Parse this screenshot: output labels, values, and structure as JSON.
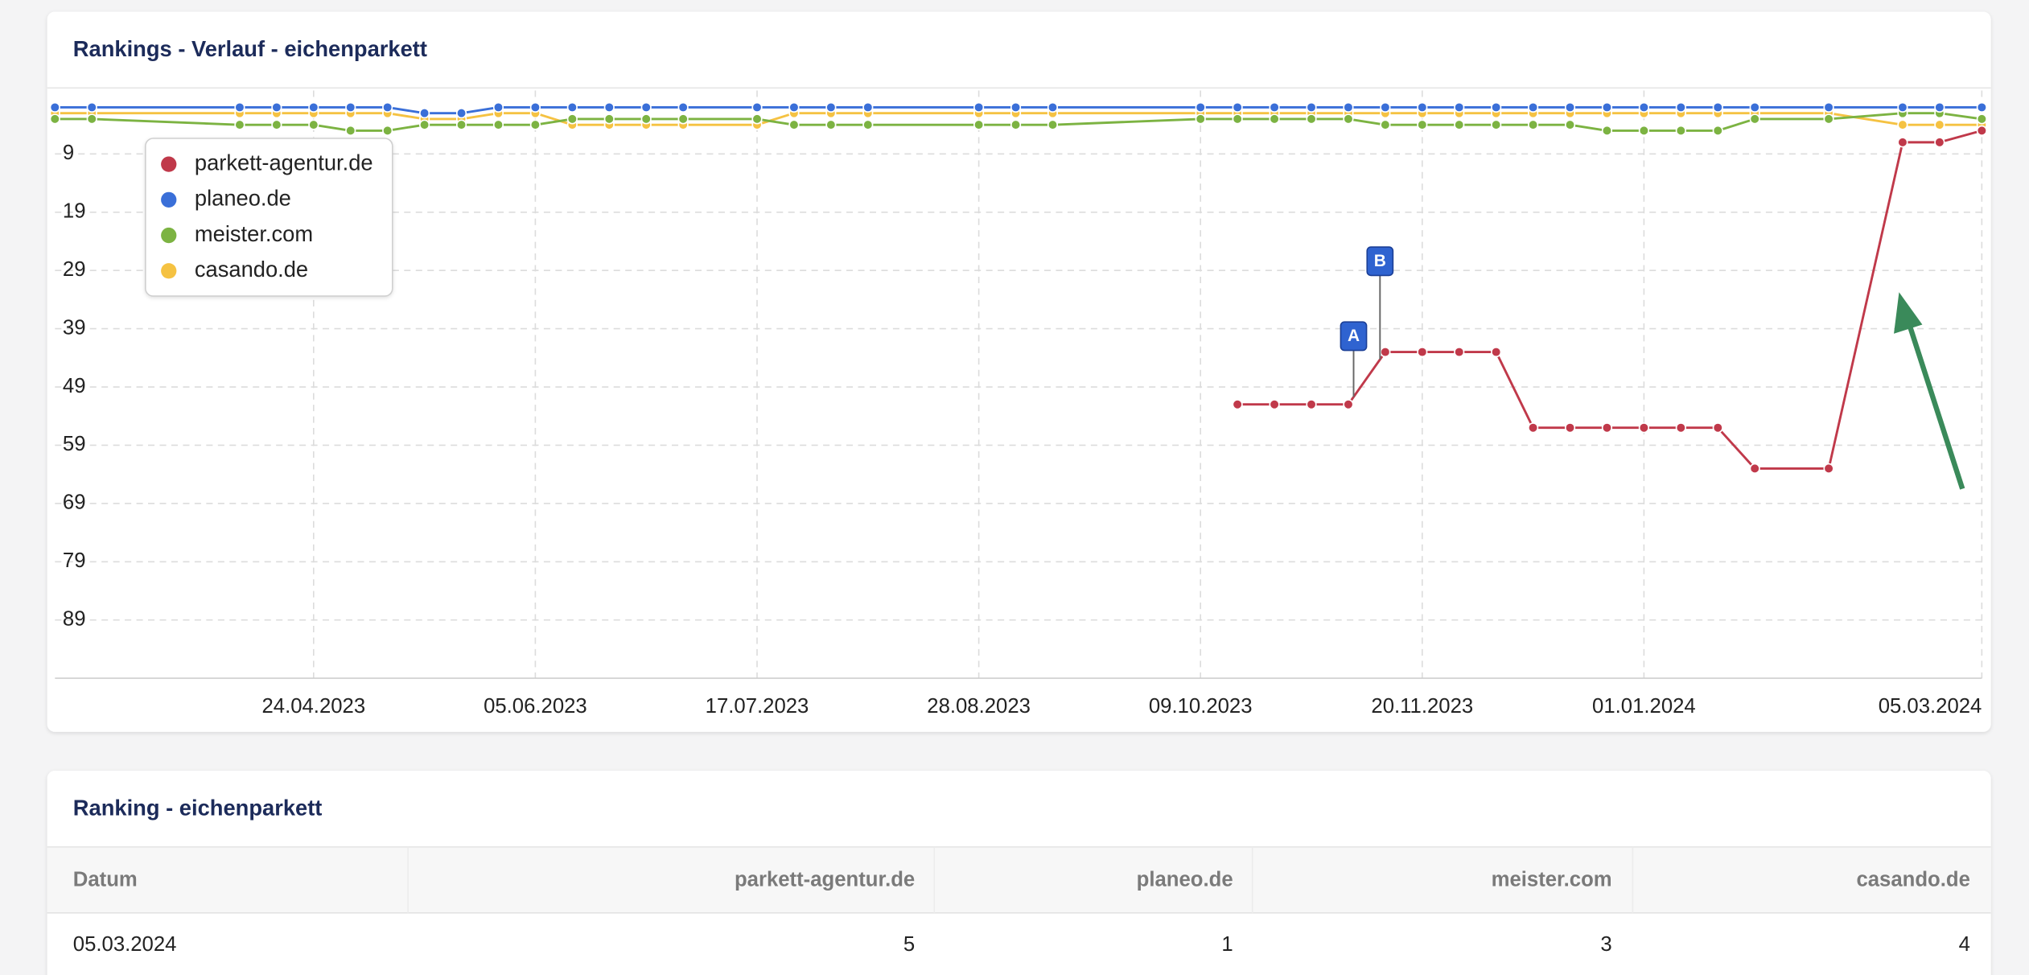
{
  "chart_data": {
    "type": "line",
    "title": "Rankings - Verlauf - eichenparkett",
    "x": [
      "2023-03-06",
      "2023-03-13",
      "2023-04-10",
      "2023-04-17",
      "2023-04-24",
      "2023-05-01",
      "2023-05-08",
      "2023-05-15",
      "2023-05-22",
      "2023-05-29",
      "2023-06-05",
      "2023-06-12",
      "2023-06-19",
      "2023-06-26",
      "2023-07-03",
      "2023-07-17",
      "2023-07-24",
      "2023-07-31",
      "2023-08-07",
      "2023-08-28",
      "2023-09-04",
      "2023-09-11",
      "2023-10-09",
      "2023-10-16",
      "2023-10-23",
      "2023-10-30",
      "2023-11-06",
      "2023-11-13",
      "2023-11-20",
      "2023-11-27",
      "2023-12-04",
      "2023-12-11",
      "2023-12-18",
      "2023-12-25",
      "2024-01-01",
      "2024-01-08",
      "2024-01-15",
      "2024-01-22",
      "2024-02-05",
      "2024-02-19",
      "2024-02-26",
      "2024-03-05"
    ],
    "series": [
      {
        "name": "parkett-agentur.de",
        "color": "#c0394a",
        "values": [
          null,
          null,
          null,
          null,
          null,
          null,
          null,
          null,
          null,
          null,
          null,
          null,
          null,
          null,
          null,
          null,
          null,
          null,
          null,
          null,
          null,
          null,
          null,
          52,
          52,
          52,
          52,
          43,
          43,
          43,
          43,
          56,
          56,
          56,
          56,
          56,
          56,
          63,
          63,
          7,
          7,
          5
        ]
      },
      {
        "name": "planeo.de",
        "color": "#3a6fd8",
        "values": [
          1,
          1,
          1,
          1,
          1,
          1,
          1,
          2,
          2,
          1,
          1,
          1,
          1,
          1,
          1,
          1,
          1,
          1,
          1,
          1,
          1,
          1,
          1,
          1,
          1,
          1,
          1,
          1,
          1,
          1,
          1,
          1,
          1,
          1,
          1,
          1,
          1,
          1,
          1,
          1,
          1,
          1
        ]
      },
      {
        "name": "meister.com",
        "color": "#7cb342",
        "values": [
          3,
          3,
          4,
          4,
          4,
          5,
          5,
          4,
          4,
          4,
          4,
          3,
          3,
          3,
          3,
          3,
          4,
          4,
          4,
          4,
          4,
          4,
          3,
          3,
          3,
          3,
          3,
          4,
          4,
          4,
          4,
          4,
          4,
          5,
          5,
          5,
          5,
          3,
          3,
          2,
          2,
          3
        ]
      },
      {
        "name": "casando.de",
        "color": "#f5c242",
        "values": [
          2,
          2,
          2,
          2,
          2,
          2,
          2,
          3,
          3,
          2,
          2,
          4,
          4,
          4,
          4,
          4,
          2,
          2,
          2,
          2,
          2,
          2,
          2,
          2,
          2,
          2,
          2,
          2,
          2,
          2,
          2,
          2,
          2,
          2,
          2,
          2,
          2,
          2,
          2,
          4,
          4,
          4
        ]
      }
    ],
    "xlim": [
      "2023-03-06",
      "2024-03-05"
    ],
    "xticks": [
      {
        "value": "2023-04-24",
        "label": "24.04.2023"
      },
      {
        "value": "2023-06-05",
        "label": "05.06.2023"
      },
      {
        "value": "2023-07-17",
        "label": "17.07.2023"
      },
      {
        "value": "2023-08-28",
        "label": "28.08.2023"
      },
      {
        "value": "2023-10-09",
        "label": "09.10.2023"
      },
      {
        "value": "2023-11-20",
        "label": "20.11.2023"
      },
      {
        "value": "2024-01-01",
        "label": "01.01.2024"
      },
      {
        "value": "2024-03-05",
        "label": "05.03.2024"
      }
    ],
    "ylim": [
      0,
      99
    ],
    "y_inverted": true,
    "yticks": [
      9,
      19,
      29,
      39,
      49,
      59,
      69,
      79,
      89
    ],
    "grid": true,
    "legend": "top-left",
    "annotations": [
      {
        "label": "A",
        "x": "2023-11-07"
      },
      {
        "label": "B",
        "x": "2023-11-12"
      }
    ]
  },
  "table": {
    "title": "Ranking - eichenparkett",
    "columns": [
      "Datum",
      "parkett-agentur.de",
      "planeo.de",
      "meister.com",
      "casando.de"
    ],
    "rows": [
      [
        "05.03.2024",
        5,
        1,
        3,
        4
      ]
    ]
  }
}
